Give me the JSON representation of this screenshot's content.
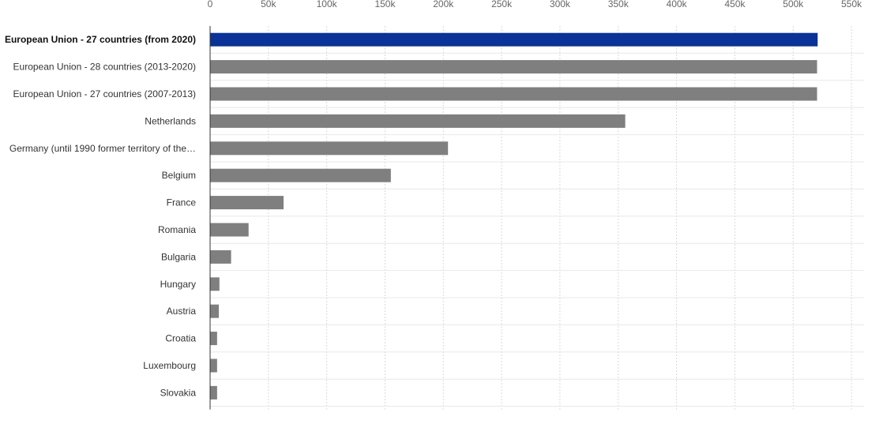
{
  "chart_data": {
    "type": "bar",
    "orientation": "horizontal",
    "categories": [
      "European Union - 27 countries (from 2020)",
      "European Union - 28 countries (2013-2020)",
      "European Union - 27 countries (2007-2013)",
      "Netherlands",
      "Germany (until 1990 former territory of the…",
      "Belgium",
      "France",
      "Romania",
      "Bulgaria",
      "Hungary",
      "Austria",
      "Croatia",
      "Luxembourg",
      "Slovakia"
    ],
    "values": [
      521000,
      520500,
      520500,
      356000,
      204000,
      155000,
      63000,
      33000,
      18000,
      8000,
      7500,
      6000,
      6000,
      6000
    ],
    "highlighted_index": 0,
    "xlim": [
      0,
      550000
    ],
    "x_ticks": [
      0,
      50000,
      100000,
      150000,
      200000,
      250000,
      300000,
      350000,
      400000,
      450000,
      500000,
      550000
    ],
    "x_tick_labels": [
      "0",
      "50k",
      "100k",
      "150k",
      "200k",
      "250k",
      "300k",
      "350k",
      "400k",
      "450k",
      "500k",
      "550k"
    ],
    "title": "",
    "xlabel": "",
    "ylabel": "",
    "grid": true,
    "colors": {
      "highlight": "#0b3296",
      "default": "#7f7f7f",
      "grid": "#d9d9d9",
      "axis": "#333333"
    }
  }
}
